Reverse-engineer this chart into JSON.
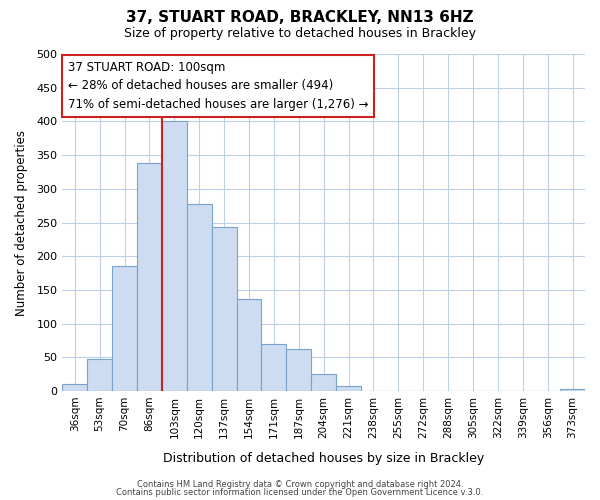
{
  "title": "37, STUART ROAD, BRACKLEY, NN13 6HZ",
  "subtitle": "Size of property relative to detached houses in Brackley",
  "xlabel": "Distribution of detached houses by size in Brackley",
  "ylabel": "Number of detached properties",
  "bar_labels": [
    "36sqm",
    "53sqm",
    "70sqm",
    "86sqm",
    "103sqm",
    "120sqm",
    "137sqm",
    "154sqm",
    "171sqm",
    "187sqm",
    "204sqm",
    "221sqm",
    "238sqm",
    "255sqm",
    "272sqm",
    "288sqm",
    "305sqm",
    "322sqm",
    "339sqm",
    "356sqm",
    "373sqm"
  ],
  "bar_values": [
    10,
    47,
    185,
    338,
    400,
    278,
    243,
    137,
    70,
    62,
    25,
    7,
    0,
    0,
    0,
    0,
    0,
    0,
    0,
    0,
    3
  ],
  "bar_color": "#cddcf0",
  "bar_edgecolor": "#7aa3cc",
  "highlight_line_index": 4,
  "highlight_color": "#cc2222",
  "ylim": [
    0,
    500
  ],
  "yticks": [
    0,
    50,
    100,
    150,
    200,
    250,
    300,
    350,
    400,
    450,
    500
  ],
  "annotation_title": "37 STUART ROAD: 100sqm",
  "annotation_line1": "← 28% of detached houses are smaller (494)",
  "annotation_line2": "71% of semi-detached houses are larger (1,276) →",
  "annotation_box_facecolor": "#ffffff",
  "annotation_box_edgecolor": "#cc2222",
  "footer_line1": "Contains HM Land Registry data © Crown copyright and database right 2024.",
  "footer_line2": "Contains public sector information licensed under the Open Government Licence v.3.0.",
  "background_color": "#ffffff",
  "grid_color": "#c0cfe8",
  "fig_width": 6.0,
  "fig_height": 5.0,
  "dpi": 100
}
